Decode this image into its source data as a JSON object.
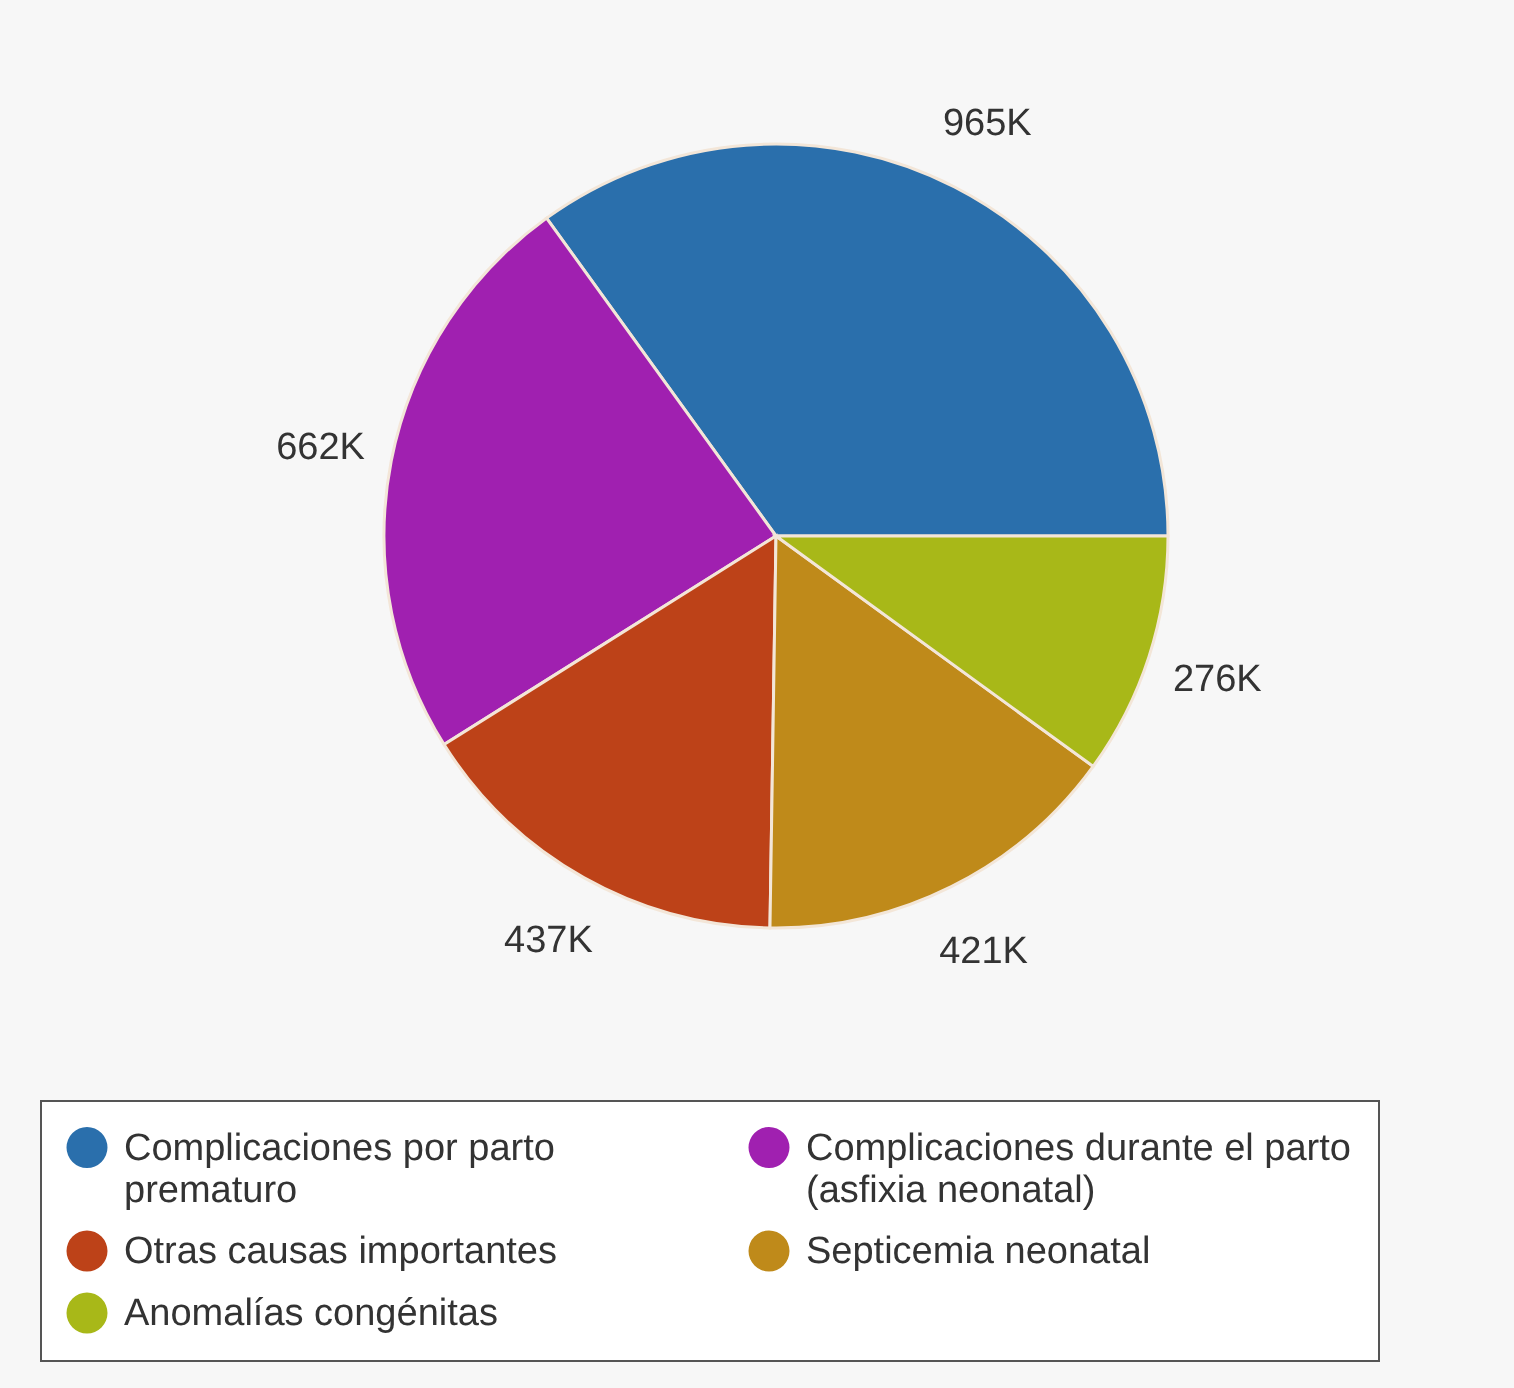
{
  "chart_data": {
    "type": "pie",
    "categories": [
      "Complicaciones por parto prematuro",
      "Complicaciones durante el parto (asfixia neonatal)",
      "Otras causas importantes",
      "Septicemia neonatal",
      "Anomalías congénitas"
    ],
    "values": [
      965000,
      662000,
      437000,
      421000,
      276000
    ],
    "value_labels": [
      "965K",
      "662K",
      "437K",
      "421K",
      "276K"
    ],
    "colors": [
      "#2a6fac",
      "#a020b0",
      "#bd4218",
      "#bf8a1a",
      "#a8b818"
    ],
    "legend": "bottom"
  }
}
